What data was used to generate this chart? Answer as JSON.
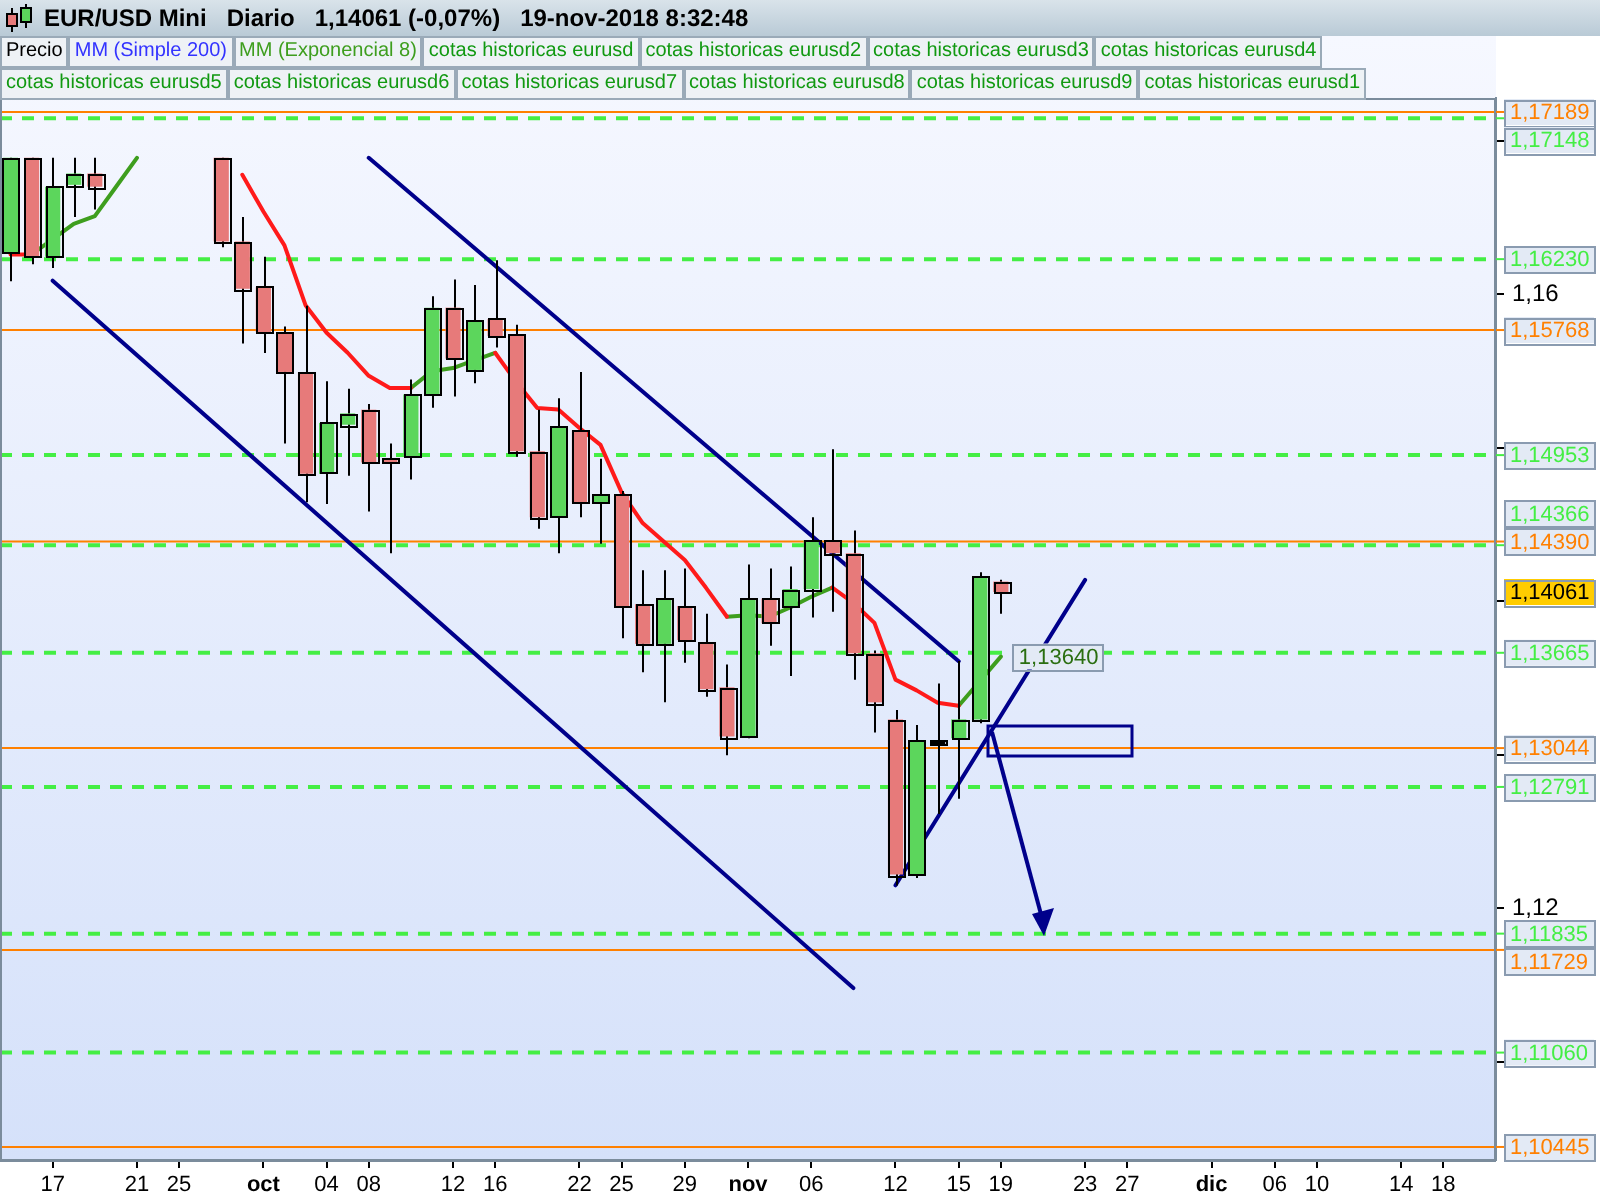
{
  "chart_data": {
    "type": "candlestick",
    "title": "EUR/USD Mini   Diario   1,14061 (-0,07%)   19-nov-2018 8:32:48",
    "legend": "top left",
    "categories": [
      null,
      null,
      "17",
      null,
      null,
      null,
      "21",
      null,
      "25",
      null,
      null,
      null,
      "oct",
      null,
      null,
      "04",
      null,
      "08",
      null,
      null,
      null,
      "12",
      null,
      "16",
      null,
      null,
      null,
      "22",
      null,
      "25",
      null,
      null,
      "29",
      null,
      null,
      "nov",
      null,
      null,
      "06",
      null,
      null,
      null,
      "12",
      null,
      null,
      "15",
      null,
      "19",
      null,
      null,
      null,
      "23",
      null,
      "27",
      null,
      null,
      null,
      "dic",
      null,
      null,
      "06",
      null,
      "10",
      null,
      null,
      null,
      "14",
      null,
      "18",
      null,
      null
    ],
    "ylim": [
      1.1036,
      1.1728
    ],
    "yticks": [
      {
        "value": 1.11,
        "label": null
      },
      {
        "value": 1.12,
        "label": "1,12"
      },
      {
        "value": 1.13,
        "label": null
      },
      {
        "value": 1.14,
        "label": null
      },
      {
        "value": 1.15,
        "label": null
      },
      {
        "value": 1.16,
        "label": "1,16"
      },
      {
        "value": 1.17,
        "label": null
      }
    ],
    "series": [
      {
        "name": "Precio",
        "type": "candlestick",
        "color": "#000000",
        "colors": [
          "#5cd65c",
          "#e77a7a",
          "#5cd65c",
          "#5cd65c",
          "#e77a7a",
          null,
          null,
          null,
          null,
          null,
          "#e77a7a",
          "#e77a7a",
          "#e77a7a",
          "#e77a7a",
          "#e77a7a",
          "#5cd65c",
          "#5cd65c",
          "#e77a7a",
          "#e77a7a",
          "#5cd65c",
          "#5cd65c",
          "#e77a7a",
          "#5cd65c",
          "#e77a7a",
          "#e77a7a",
          "#e77a7a",
          "#5cd65c",
          "#e77a7a",
          "#5cd65c",
          "#e77a7a",
          "#e77a7a",
          "#5cd65c",
          "#e77a7a",
          "#e77a7a",
          "#e77a7a",
          "#5cd65c",
          "#e77a7a",
          "#5cd65c",
          "#5cd65c",
          "#e77a7a",
          "#e77a7a",
          "#e77a7a",
          "#e77a7a",
          "#5cd65c",
          "#000000",
          "#5cd65c",
          "#5cd65c",
          "#e77a7a",
          null,
          null,
          null,
          null,
          null,
          null,
          null,
          null,
          null,
          null,
          null,
          null,
          null,
          null,
          null,
          null,
          null,
          null,
          null,
          null,
          null,
          null,
          null
        ],
        "ohlc": [
          [
            1.16271,
            1.1689,
            1.16086,
            1.1689
          ],
          [
            1.1689,
            1.1689,
            1.16197,
            1.16246
          ],
          [
            1.16246,
            1.1689,
            1.16172,
            1.16702
          ],
          [
            1.16714,
            1.1689,
            1.16505,
            1.16788
          ],
          [
            1.16788,
            1.1689,
            1.16554,
            1.16702
          ],
          null,
          null,
          null,
          null,
          null,
          [
            1.1689,
            1.1689,
            1.16308,
            1.16345
          ],
          [
            1.16345,
            1.16505,
            1.1568,
            1.16037
          ],
          [
            1.16049,
            1.16246,
            1.15618,
            1.15754
          ],
          [
            1.15754,
            1.15791,
            1.15028,
            1.15495
          ],
          [
            1.15495,
            1.15926,
            1.14646,
            1.14831
          ],
          [
            1.14831,
            1.15434,
            1.14634,
            1.15163
          ],
          [
            1.15151,
            1.15385,
            1.14818,
            1.15225
          ],
          [
            1.15249,
            1.15286,
            1.14585,
            1.14905
          ],
          [
            1.14929,
            1.15028,
            1.14314,
            1.14905
          ],
          [
            1.14942,
            1.15446,
            1.14794,
            1.15348
          ],
          [
            1.15348,
            1.15988,
            1.15262,
            1.15914
          ],
          [
            1.15914,
            1.16098,
            1.15335,
            1.15582
          ],
          [
            1.15508,
            1.16062,
            1.15422,
            1.15828
          ],
          [
            1.1584,
            1.16222,
            1.15655,
            1.15729
          ],
          [
            1.15742,
            1.15803,
            1.14942,
            1.14978
          ],
          [
            1.14978,
            1.15249,
            1.14474,
            1.14548
          ],
          [
            1.14548,
            1.15323,
            1.14314,
            1.15138
          ],
          [
            1.15114,
            1.15495,
            1.14548,
            1.14646
          ],
          [
            1.14646,
            1.14929,
            1.14375,
            1.14695
          ],
          [
            1.14695,
            1.1472,
            1.1376,
            1.1397
          ],
          [
            1.13982,
            1.14203,
            1.13538,
            1.13723
          ],
          [
            1.13723,
            1.14203,
            1.13342,
            1.14018
          ],
          [
            1.1397,
            1.14215,
            1.136,
            1.13748
          ],
          [
            1.13735,
            1.1392,
            1.13378,
            1.13428
          ],
          [
            1.1344,
            1.13588,
            1.12997,
            1.1312
          ],
          [
            1.1312,
            1.1424,
            1.13108,
            1.14018
          ],
          [
            1.14018,
            1.14215,
            1.13711,
            1.13858
          ],
          [
            1.1397,
            1.14228,
            1.13514,
            1.1408
          ],
          [
            1.1408,
            1.14548,
            1.13895,
            1.144
          ],
          [
            1.144,
            1.14991,
            1.13932,
            1.14314
          ],
          [
            1.14314,
            1.14462,
            1.13489,
            1.13662
          ],
          [
            1.13662,
            1.1368,
            1.13145,
            1.13342
          ],
          [
            1.13231,
            1.13292,
            1.12148,
            1.12221
          ],
          [
            1.12221,
            1.13194,
            1.12197,
            1.13095
          ],
          [
            1.13095,
            1.13465,
            1.12615,
            1.13083
          ],
          [
            1.13108,
            1.13612,
            1.12714,
            1.13231
          ],
          [
            1.13231,
            1.1419,
            1.13206,
            1.14166
          ],
          [
            1.14129,
            1.14141,
            1.1392,
            1.14061
          ],
          null,
          null,
          null,
          null,
          null,
          null,
          null,
          null,
          null,
          null,
          null,
          null,
          null,
          null,
          null,
          null,
          null,
          null,
          null,
          null,
          null,
          null,
          null
        ],
        "value_labels": [
          null,
          null,
          null,
          null,
          null,
          null,
          null,
          null,
          null,
          null,
          null,
          null,
          null,
          null,
          null,
          null,
          null,
          null,
          null,
          null,
          null,
          null,
          null,
          null,
          null,
          null,
          null,
          null,
          null,
          null,
          null,
          null,
          null,
          null,
          null,
          null,
          null,
          null,
          null,
          null,
          null,
          null,
          null,
          null,
          null,
          null,
          null,
          "1,14061",
          null,
          null,
          null,
          null,
          null,
          null,
          null,
          null,
          null,
          null,
          null,
          null,
          null,
          null,
          null,
          null,
          null,
          null,
          null,
          null,
          null,
          null,
          null
        ]
      },
      {
        "name": "MM (Simple 200)",
        "type": "line",
        "color": "#3333ff",
        "values": [
          null,
          null,
          null,
          null,
          null,
          null,
          null,
          null,
          null,
          null,
          null,
          null,
          null,
          null,
          null,
          null,
          null,
          null,
          null,
          null,
          null,
          null,
          null,
          null,
          null,
          null,
          null,
          null,
          null,
          null,
          null,
          null,
          null,
          null,
          null,
          null,
          null,
          null,
          null,
          null,
          null,
          null,
          null,
          null,
          null,
          null,
          null,
          null,
          null,
          null,
          null,
          null,
          null,
          null,
          null,
          null,
          null,
          null,
          null,
          null,
          null,
          null,
          null,
          null,
          null,
          null,
          null,
          null,
          null,
          null,
          null
        ]
      },
      {
        "type": "line",
        "color": "#ff1a1a",
        "values": [
          1.1626,
          1.1626,
          null,
          null,
          null,
          null,
          null,
          null,
          null,
          null,
          null,
          1.1678,
          1.1654,
          1.1632,
          1.1593,
          1.1575,
          1.1562,
          1.1547,
          1.1539,
          1.1539,
          null,
          null,
          null,
          1.1562,
          1.1543,
          1.1526,
          1.1525,
          1.1513,
          1.1502,
          1.1471,
          1.1451,
          1.1439,
          1.1427,
          1.1409,
          1.139,
          null,
          null,
          null,
          null,
          1.1409,
          1.1399,
          1.1386,
          1.1349,
          1.1342,
          1.1334,
          1.1332,
          null,
          null,
          null,
          null,
          null,
          null,
          null,
          null,
          null,
          null,
          null,
          null,
          null,
          null,
          null,
          null,
          null,
          null,
          null,
          null,
          null,
          null,
          null,
          null,
          null
        ]
      },
      {
        "name": "MM (Exponencial 8)",
        "type": "line",
        "color": "#3e9e1e",
        "values": [
          null,
          1.1626,
          1.1636,
          1.1646,
          1.1651,
          1.167,
          1.1689,
          null,
          null,
          null,
          null,
          null,
          null,
          null,
          null,
          null,
          null,
          null,
          null,
          1.1539,
          1.155,
          1.1552,
          1.1557,
          1.1562,
          null,
          null,
          null,
          null,
          null,
          null,
          null,
          null,
          null,
          null,
          1.139,
          1.1391,
          1.139,
          1.1396,
          1.1403,
          1.1409,
          null,
          null,
          null,
          null,
          null,
          1.1332,
          1.1348,
          1.1364,
          null,
          null,
          null,
          null,
          null,
          null,
          null,
          null,
          null,
          null,
          null,
          null,
          null,
          null,
          null,
          null,
          null,
          null,
          null,
          null,
          null,
          null,
          null
        ],
        "value_labels": [
          null,
          null,
          null,
          null,
          null,
          null,
          null,
          null,
          null,
          null,
          null,
          null,
          null,
          null,
          null,
          null,
          null,
          null,
          null,
          null,
          null,
          null,
          null,
          null,
          null,
          null,
          null,
          null,
          null,
          null,
          null,
          null,
          null,
          null,
          null,
          null,
          null,
          null,
          null,
          null,
          null,
          null,
          null,
          null,
          null,
          null,
          null,
          "1,13640",
          null,
          null,
          null,
          null,
          null,
          null,
          null,
          null,
          null,
          null,
          null,
          null,
          null,
          null,
          null,
          null,
          null,
          null,
          null,
          null,
          null,
          null,
          null
        ]
      },
      {
        "type": "line",
        "color": "#00008b",
        "values": [
          null,
          null,
          null,
          null,
          null,
          null,
          null,
          null,
          null,
          null,
          null,
          null,
          null,
          null,
          null,
          null,
          null,
          1.1689,
          null,
          null,
          null,
          null,
          null,
          null,
          null,
          null,
          null,
          null,
          null,
          null,
          null,
          null,
          null,
          null,
          null,
          null,
          null,
          null,
          null,
          null,
          null,
          null,
          null,
          null,
          null,
          1.1361,
          null,
          null,
          null,
          null,
          null,
          null,
          null,
          null,
          null,
          null,
          null,
          null,
          null,
          null,
          null,
          null,
          null,
          null,
          null,
          null,
          null,
          null,
          null,
          null,
          null
        ]
      },
      {
        "type": "line",
        "color": "#00008b",
        "values": [
          null,
          null,
          1.1609,
          null,
          null,
          null,
          null,
          null,
          null,
          null,
          null,
          null,
          null,
          null,
          null,
          null,
          null,
          null,
          null,
          null,
          null,
          null,
          null,
          null,
          null,
          null,
          null,
          null,
          null,
          null,
          null,
          null,
          null,
          null,
          null,
          null,
          null,
          null,
          null,
          null,
          1.1148,
          null,
          null,
          null,
          null,
          null,
          null,
          null,
          null,
          null,
          null,
          null,
          null,
          null,
          null,
          null,
          null,
          null,
          null,
          null,
          null,
          null,
          null,
          null,
          null,
          null,
          null,
          null,
          null,
          null,
          null
        ]
      },
      {
        "type": "line",
        "color": "#00008b",
        "values": [
          null,
          null,
          null,
          null,
          null,
          null,
          null,
          null,
          null,
          null,
          null,
          null,
          null,
          null,
          null,
          null,
          null,
          null,
          null,
          null,
          null,
          null,
          null,
          null,
          null,
          null,
          null,
          null,
          null,
          null,
          null,
          null,
          null,
          null,
          null,
          null,
          null,
          null,
          null,
          null,
          null,
          null,
          1.1215,
          null,
          null,
          null,
          null,
          null,
          null,
          null,
          null,
          1.1414,
          null,
          null,
          null,
          null,
          null,
          null,
          null,
          null,
          null,
          null,
          null,
          null,
          null,
          null,
          null,
          null,
          null,
          null,
          null
        ]
      }
    ],
    "ref_lines": [
      {
        "axis": "y",
        "value": 1.17189,
        "label": "1,17189",
        "color": "#ff8000",
        "line_style": "solid"
      },
      {
        "axis": "y",
        "value": 1.17148,
        "label": "1,17148",
        "color": "#44ee44",
        "line_style": "dashed"
      },
      {
        "axis": "y",
        "value": 1.1623,
        "label": "1,16230",
        "color": "#44ee44",
        "line_style": "dashed"
      },
      {
        "axis": "y",
        "value": 1.15768,
        "label": "1,15768",
        "color": "#ff8000",
        "line_style": "solid"
      },
      {
        "axis": "y",
        "value": 1.14953,
        "label": "1,14953",
        "color": "#44ee44",
        "line_style": "dashed"
      },
      {
        "axis": "y",
        "value": 1.1439,
        "label": "1,14390",
        "color": "#ff8000",
        "line_style": "solid"
      },
      {
        "axis": "y",
        "value": 1.14366,
        "label": "1,14366",
        "color": "#44ee44",
        "line_style": "dashed"
      },
      {
        "axis": "y",
        "value": 1.13665,
        "label": "1,13665",
        "color": "#44ee44",
        "line_style": "dashed"
      },
      {
        "axis": "y",
        "value": 1.13044,
        "label": "1,13044",
        "color": "#ff8000",
        "line_style": "solid"
      },
      {
        "axis": "y",
        "value": 1.12791,
        "label": "1,12791",
        "color": "#44ee44",
        "line_style": "dashed"
      },
      {
        "axis": "y",
        "value": 1.11835,
        "label": "1,11835",
        "color": "#44ee44",
        "line_style": "dashed"
      },
      {
        "axis": "y",
        "value": 1.11729,
        "label": "1,11729",
        "color": "#ff8000",
        "line_style": "solid"
      },
      {
        "axis": "y",
        "value": 1.1106,
        "label": "1,11060",
        "color": "#44ee44",
        "line_style": "dashed"
      },
      {
        "axis": "y",
        "value": 1.10445,
        "label": "1,10445",
        "color": "#ff8000",
        "line_style": "solid"
      }
    ],
    "annotations": [
      "cotas historicas eurusd",
      "cotas historicas eurusd2",
      "cotas historicas eurusd3",
      "cotas historicas eurusd4",
      "cotas historicas eurusd5",
      "cotas historicas eurusd6",
      "cotas historicas eurusd7",
      "cotas historicas eurusd8",
      "cotas historicas eurusd9",
      "cotas historicas eurusd1"
    ]
  }
}
